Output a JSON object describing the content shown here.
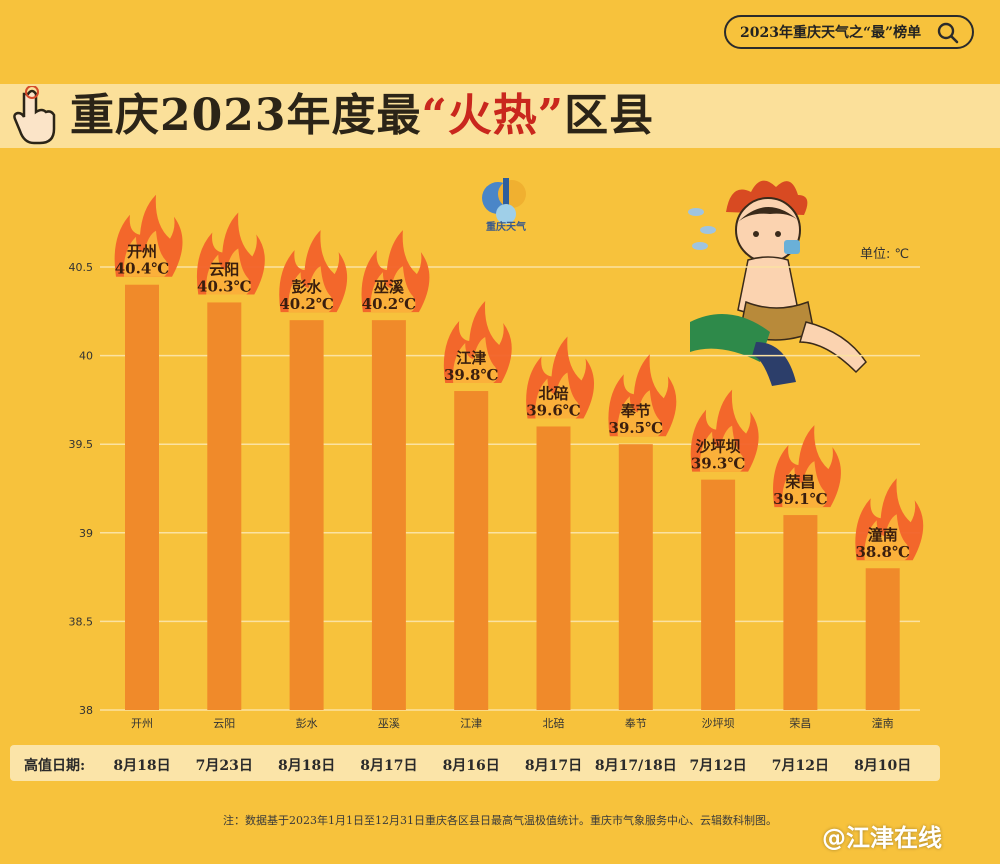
{
  "tag": {
    "text": "2023年重庆天气之“最”榜单"
  },
  "header": {
    "title_pre": "重庆2023年度最",
    "title_hot": "“火热”",
    "title_post": "区县"
  },
  "logo": {
    "text": "重庆天气"
  },
  "unit_label": "单位: ℃",
  "colors": {
    "background": "#f7c23c",
    "bar": "#f08a2a",
    "title_band": "#fbe09a",
    "hot": "#c9271d"
  },
  "chart_data": {
    "type": "bar",
    "title": "重庆2023年度最“火热”区县",
    "categories": [
      "开州",
      "云阳",
      "彭水",
      "巫溪",
      "江津",
      "北碚",
      "奉节",
      "沙坪坝",
      "荣昌",
      "潼南"
    ],
    "values": [
      40.4,
      40.3,
      40.2,
      40.2,
      39.8,
      39.6,
      39.5,
      39.3,
      39.1,
      38.8
    ],
    "data_labels": [
      "40.4℃",
      "40.3℃",
      "40.2℃",
      "40.2℃",
      "39.8℃",
      "39.6℃",
      "39.5℃",
      "39.3℃",
      "39.1℃",
      "38.8℃"
    ],
    "ylim": [
      38,
      40.5
    ],
    "yticks": [
      "38",
      "38.5",
      "39",
      "39.5",
      "40",
      "40.5"
    ],
    "ytick_values": [
      38,
      38.5,
      39,
      39.5,
      40,
      40.5
    ],
    "unit": "单位: ℃",
    "grid": true
  },
  "dates": {
    "label": "高值日期:",
    "values": [
      "8月18日",
      "7月23日",
      "8月18日",
      "8月17日",
      "8月16日",
      "8月17日",
      "8月17/18日",
      "7月12日",
      "7月12日",
      "8月10日"
    ]
  },
  "footnote": "注：数据基于2023年1月1日至12月31日重庆各区县日最高气温极值统计。重庆市气象服务中心、云辑数科制图。",
  "watermark": "@江津在线"
}
